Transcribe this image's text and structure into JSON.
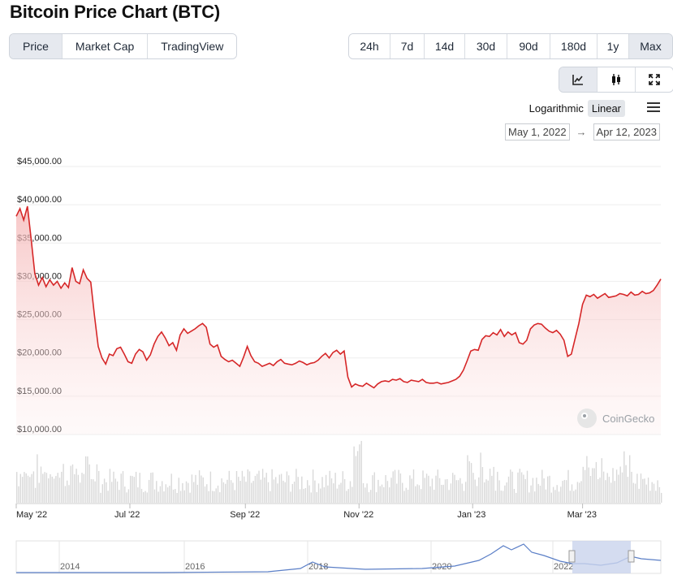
{
  "title": "Bitcoin Price Chart (BTC)",
  "tabs": [
    {
      "label": "Price",
      "active": true
    },
    {
      "label": "Market Cap",
      "active": false
    },
    {
      "label": "TradingView",
      "active": false
    }
  ],
  "ranges": [
    {
      "label": "24h",
      "active": false
    },
    {
      "label": "7d",
      "active": false
    },
    {
      "label": "14d",
      "active": false
    },
    {
      "label": "30d",
      "active": false
    },
    {
      "label": "90d",
      "active": false
    },
    {
      "label": "180d",
      "active": false
    },
    {
      "label": "1y",
      "active": false
    },
    {
      "label": "Max",
      "active": true
    }
  ],
  "chart_types": [
    {
      "name": "line-chart-icon",
      "active": true
    },
    {
      "name": "candlestick-icon",
      "active": false
    },
    {
      "name": "expand-icon",
      "active": false
    }
  ],
  "scale": {
    "logarithmic": "Logarithmic",
    "linear": "Linear",
    "active": "linear"
  },
  "date_range": {
    "from": "May 1, 2022",
    "to": "Apr 12, 2023",
    "arrow": "→"
  },
  "watermark": "CoinGecko",
  "colors": {
    "line": "#d62728",
    "fill_top": "#f7c6c6",
    "volume": "#d9d9d9",
    "navigator_line": "#5b7fc7",
    "navigator_mask": "#c9d3ec"
  },
  "chart_data": {
    "type": "line",
    "ylim": [
      10000,
      45000
    ],
    "yticks": [
      "$45,000.00",
      "$40,000.00",
      "$35,000.00",
      "$30,000.00",
      "$25,000.00",
      "$20,000.00",
      "$15,000.00",
      "$10,000.00"
    ],
    "ytick_values": [
      45000,
      40000,
      35000,
      30000,
      25000,
      20000,
      15000,
      10000
    ],
    "xticks": [
      {
        "label": "May '22",
        "day": 0
      },
      {
        "label": "Jul '22",
        "day": 61
      },
      {
        "label": "Sep '22",
        "day": 123
      },
      {
        "label": "Nov '22",
        "day": 184
      },
      {
        "label": "Jan '23",
        "day": 245
      },
      {
        "label": "Mar '23",
        "day": 304
      }
    ],
    "x_days_total": 346,
    "series": [
      {
        "values": [
          [
            0,
            38500
          ],
          [
            2,
            39500
          ],
          [
            4,
            38000
          ],
          [
            6,
            39800
          ],
          [
            8,
            35500
          ],
          [
            10,
            31000
          ],
          [
            12,
            29500
          ],
          [
            14,
            30500
          ],
          [
            16,
            29300
          ],
          [
            18,
            30200
          ],
          [
            20,
            29500
          ],
          [
            22,
            30000
          ],
          [
            24,
            29100
          ],
          [
            26,
            29800
          ],
          [
            28,
            29200
          ],
          [
            30,
            31800
          ],
          [
            32,
            30000
          ],
          [
            34,
            29700
          ],
          [
            36,
            31500
          ],
          [
            38,
            30400
          ],
          [
            40,
            29900
          ],
          [
            42,
            25500
          ],
          [
            44,
            21500
          ],
          [
            46,
            20000
          ],
          [
            48,
            19200
          ],
          [
            50,
            20500
          ],
          [
            52,
            20300
          ],
          [
            54,
            21200
          ],
          [
            56,
            21400
          ],
          [
            58,
            20500
          ],
          [
            60,
            19500
          ],
          [
            62,
            19300
          ],
          [
            64,
            20500
          ],
          [
            66,
            21100
          ],
          [
            68,
            20800
          ],
          [
            70,
            19700
          ],
          [
            72,
            20400
          ],
          [
            74,
            21800
          ],
          [
            76,
            22800
          ],
          [
            78,
            23400
          ],
          [
            80,
            22600
          ],
          [
            82,
            21600
          ],
          [
            84,
            22000
          ],
          [
            86,
            21000
          ],
          [
            88,
            23000
          ],
          [
            90,
            23800
          ],
          [
            92,
            23200
          ],
          [
            94,
            23500
          ],
          [
            96,
            23800
          ],
          [
            98,
            24200
          ],
          [
            100,
            24500
          ],
          [
            102,
            24000
          ],
          [
            104,
            21800
          ],
          [
            106,
            21400
          ],
          [
            108,
            21700
          ],
          [
            110,
            20200
          ],
          [
            112,
            19800
          ],
          [
            114,
            19500
          ],
          [
            116,
            19700
          ],
          [
            118,
            19300
          ],
          [
            120,
            18900
          ],
          [
            122,
            20100
          ],
          [
            124,
            21500
          ],
          [
            126,
            20300
          ],
          [
            128,
            19500
          ],
          [
            130,
            19300
          ],
          [
            132,
            18900
          ],
          [
            134,
            19100
          ],
          [
            136,
            19300
          ],
          [
            138,
            19000
          ],
          [
            140,
            19500
          ],
          [
            142,
            19800
          ],
          [
            144,
            19300
          ],
          [
            146,
            19200
          ],
          [
            148,
            19100
          ],
          [
            150,
            19300
          ],
          [
            152,
            19600
          ],
          [
            154,
            19400
          ],
          [
            156,
            19100
          ],
          [
            158,
            19300
          ],
          [
            160,
            19400
          ],
          [
            162,
            19700
          ],
          [
            164,
            20200
          ],
          [
            166,
            20600
          ],
          [
            168,
            20000
          ],
          [
            170,
            20700
          ],
          [
            172,
            21000
          ],
          [
            174,
            20500
          ],
          [
            176,
            20900
          ],
          [
            178,
            17500
          ],
          [
            180,
            16200
          ],
          [
            182,
            16600
          ],
          [
            184,
            16400
          ],
          [
            186,
            16300
          ],
          [
            188,
            16700
          ],
          [
            190,
            16400
          ],
          [
            192,
            16100
          ],
          [
            194,
            16600
          ],
          [
            196,
            16900
          ],
          [
            198,
            17000
          ],
          [
            200,
            16900
          ],
          [
            202,
            17200
          ],
          [
            204,
            17100
          ],
          [
            206,
            17300
          ],
          [
            208,
            16900
          ],
          [
            210,
            16800
          ],
          [
            212,
            17100
          ],
          [
            214,
            17000
          ],
          [
            216,
            16900
          ],
          [
            218,
            17200
          ],
          [
            220,
            16800
          ],
          [
            222,
            16700
          ],
          [
            224,
            16700
          ],
          [
            226,
            16800
          ],
          [
            228,
            16600
          ],
          [
            230,
            16700
          ],
          [
            232,
            16800
          ],
          [
            234,
            17000
          ],
          [
            236,
            17200
          ],
          [
            238,
            17600
          ],
          [
            240,
            18400
          ],
          [
            242,
            19600
          ],
          [
            244,
            20900
          ],
          [
            246,
            21100
          ],
          [
            248,
            21000
          ],
          [
            250,
            22400
          ],
          [
            252,
            22900
          ],
          [
            254,
            22800
          ],
          [
            256,
            23300
          ],
          [
            258,
            23000
          ],
          [
            260,
            23700
          ],
          [
            262,
            22800
          ],
          [
            264,
            23400
          ],
          [
            266,
            23000
          ],
          [
            268,
            23300
          ],
          [
            270,
            22000
          ],
          [
            272,
            21800
          ],
          [
            274,
            22300
          ],
          [
            276,
            23800
          ],
          [
            278,
            24300
          ],
          [
            280,
            24500
          ],
          [
            282,
            24400
          ],
          [
            284,
            23900
          ],
          [
            286,
            23500
          ],
          [
            288,
            23300
          ],
          [
            290,
            23600
          ],
          [
            292,
            23100
          ],
          [
            294,
            22300
          ],
          [
            296,
            20200
          ],
          [
            298,
            20500
          ],
          [
            300,
            22500
          ],
          [
            302,
            24500
          ],
          [
            304,
            27000
          ],
          [
            306,
            28200
          ],
          [
            308,
            28000
          ],
          [
            310,
            28300
          ],
          [
            312,
            27800
          ],
          [
            314,
            28100
          ],
          [
            316,
            28400
          ],
          [
            318,
            27900
          ],
          [
            320,
            28000
          ],
          [
            322,
            28100
          ],
          [
            324,
            28400
          ],
          [
            326,
            28300
          ],
          [
            328,
            28100
          ],
          [
            330,
            28600
          ],
          [
            332,
            28200
          ],
          [
            334,
            28300
          ],
          [
            336,
            28700
          ],
          [
            338,
            28400
          ],
          [
            340,
            28500
          ],
          [
            342,
            28800
          ],
          [
            344,
            29500
          ],
          [
            346,
            30300
          ]
        ]
      }
    ],
    "navigator": {
      "labels": [
        "2014",
        "2016",
        "2018",
        "2020",
        "2022"
      ]
    }
  }
}
